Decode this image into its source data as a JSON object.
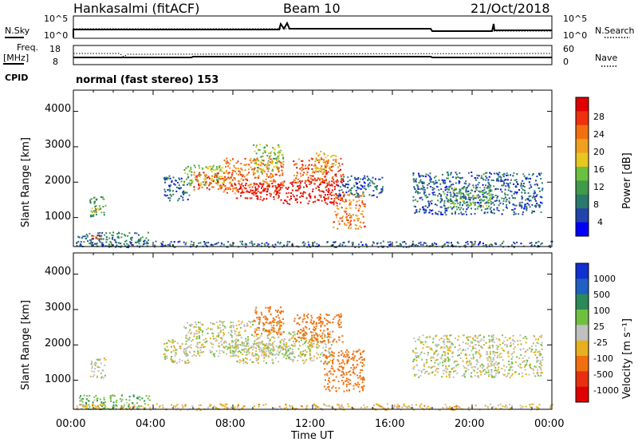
{
  "header": {
    "station": "Hankasalmi (fitACF)",
    "beam": "Beam 10",
    "date": "21/Oct/2018",
    "cpid_label": "CPID",
    "cpid_value": "normal (fast stereo) 153"
  },
  "nsky_panel": {
    "left_label": "N.Sky",
    "right_label": "N.Search",
    "left_ticks": [
      "10^5",
      "10^0"
    ],
    "right_ticks": [
      "10^5",
      "10^0"
    ]
  },
  "freq_panel": {
    "left_label_1": "Freq.",
    "left_label_2": "[MHz]",
    "right_label": "Nave",
    "left_ticks": [
      "18",
      "8"
    ],
    "right_ticks": [
      "60",
      "0"
    ]
  },
  "power_panel": {
    "ylabel": "Slant Range [km]",
    "yticks": [
      "4000",
      "3000",
      "2000",
      "1000"
    ],
    "colorbar_label": "Power [dB]",
    "colorbar_ticks": [
      "28",
      "24",
      "20",
      "16",
      "12",
      "8",
      "4"
    ]
  },
  "velocity_panel": {
    "ylabel": "Slant Range [km]",
    "yticks": [
      "4000",
      "3000",
      "2000",
      "1000"
    ],
    "colorbar_label": "Velocity [m s⁻¹]",
    "colorbar_ticks": [
      "1000",
      "500",
      "100",
      "25",
      "-25",
      "-100",
      "-500",
      "-1000"
    ]
  },
  "x_axis": {
    "label": "Time UT",
    "ticks": [
      "00:00",
      "04:00",
      "08:00",
      "12:00",
      "16:00",
      "20:00",
      "00:00"
    ]
  },
  "colors": {
    "power_scale": [
      "#0000ff",
      "#2244aa",
      "#2a7a6a",
      "#3f9a4a",
      "#6cc040",
      "#e8c820",
      "#f0a020",
      "#f07010",
      "#ee3010",
      "#e00000"
    ],
    "velocity_scale": [
      "#1030d0",
      "#2060c0",
      "#2a8a5a",
      "#70c040",
      "#c0c0c0",
      "#e8b020",
      "#f07010",
      "#e83010",
      "#e00000"
    ]
  },
  "chart_data": [
    {
      "type": "heatmap",
      "title": "Power",
      "xlabel": "Time UT",
      "ylabel": "Slant Range [km]",
      "xlim_hours": [
        0,
        24
      ],
      "ylim": [
        180,
        4600
      ],
      "zlabel": "Power [dB]",
      "zlim": [
        0,
        30
      ],
      "regions": [
        {
          "t0": 0.8,
          "t1": 1.6,
          "r0": 1050,
          "r1": 1650,
          "value": 10
        },
        {
          "t0": 0.9,
          "t1": 1.4,
          "r0": 1150,
          "r1": 1300,
          "value": 18
        },
        {
          "t0": 0.2,
          "t1": 3.8,
          "r0": 200,
          "r1": 600,
          "value": 8
        },
        {
          "t0": 0.8,
          "t1": 1.4,
          "r0": 400,
          "r1": 550,
          "value": 26
        },
        {
          "t0": 4.5,
          "t1": 5.8,
          "r0": 1500,
          "r1": 2200,
          "value": 6
        },
        {
          "t0": 5.5,
          "t1": 7.5,
          "r0": 1900,
          "r1": 2500,
          "value": 14
        },
        {
          "t0": 6.0,
          "t1": 8.0,
          "r0": 1800,
          "r1": 2300,
          "value": 24
        },
        {
          "t0": 7.5,
          "t1": 10.5,
          "r0": 1700,
          "r1": 2700,
          "value": 22
        },
        {
          "t0": 8.0,
          "t1": 10.5,
          "r0": 1500,
          "r1": 2000,
          "value": 28
        },
        {
          "t0": 9.0,
          "t1": 10.5,
          "r0": 2300,
          "r1": 3100,
          "value": 14
        },
        {
          "t0": 10.5,
          "t1": 13.5,
          "r0": 1400,
          "r1": 2100,
          "value": 28
        },
        {
          "t0": 11.0,
          "t1": 13.5,
          "r0": 2000,
          "r1": 2700,
          "value": 24
        },
        {
          "t0": 12.0,
          "t1": 13.2,
          "r0": 2300,
          "r1": 2900,
          "value": 18
        },
        {
          "t0": 13.0,
          "t1": 14.6,
          "r0": 700,
          "r1": 1700,
          "value": 22
        },
        {
          "t0": 13.2,
          "t1": 15.5,
          "r0": 1600,
          "r1": 2200,
          "value": 6
        },
        {
          "t0": 17.0,
          "t1": 23.5,
          "r0": 1100,
          "r1": 2300,
          "value": 6
        },
        {
          "t0": 18.5,
          "t1": 21.0,
          "r0": 1300,
          "r1": 1900,
          "value": 12
        },
        {
          "t0": 0.0,
          "t1": 24.0,
          "r0": 180,
          "r1": 350,
          "value": 6
        }
      ]
    },
    {
      "type": "heatmap",
      "title": "Velocity",
      "xlabel": "Time UT",
      "ylabel": "Slant Range [km]",
      "xlim_hours": [
        0,
        24
      ],
      "ylim": [
        180,
        4600
      ],
      "zlabel": "Velocity [m s⁻¹]",
      "zlim": [
        -1000,
        1000
      ],
      "regions": [
        {
          "t0": 0.8,
          "t1": 1.6,
          "r0": 1050,
          "r1": 1650,
          "value": 0
        },
        {
          "t0": 0.2,
          "t1": 3.8,
          "r0": 200,
          "r1": 600,
          "value": 80
        },
        {
          "t0": 4.5,
          "t1": 5.8,
          "r0": 1500,
          "r1": 2200,
          "value": 0
        },
        {
          "t0": 5.5,
          "t1": 10.5,
          "r0": 1700,
          "r1": 2700,
          "value": 0
        },
        {
          "t0": 8.0,
          "t1": 11.0,
          "r0": 1500,
          "r1": 2100,
          "value": 0
        },
        {
          "t0": 9.0,
          "t1": 10.5,
          "r0": 2300,
          "r1": 3100,
          "value": -300
        },
        {
          "t0": 10.5,
          "t1": 13.0,
          "r0": 1500,
          "r1": 2400,
          "value": 0
        },
        {
          "t0": 11.0,
          "t1": 13.5,
          "r0": 2100,
          "r1": 2900,
          "value": -300
        },
        {
          "t0": 12.5,
          "t1": 14.6,
          "r0": 700,
          "r1": 1900,
          "value": -300
        },
        {
          "t0": 17.0,
          "t1": 23.5,
          "r0": 1100,
          "r1": 2300,
          "value": 0
        },
        {
          "t0": 0.0,
          "t1": 24.0,
          "r0": 180,
          "r1": 350,
          "value": -50
        }
      ]
    }
  ]
}
